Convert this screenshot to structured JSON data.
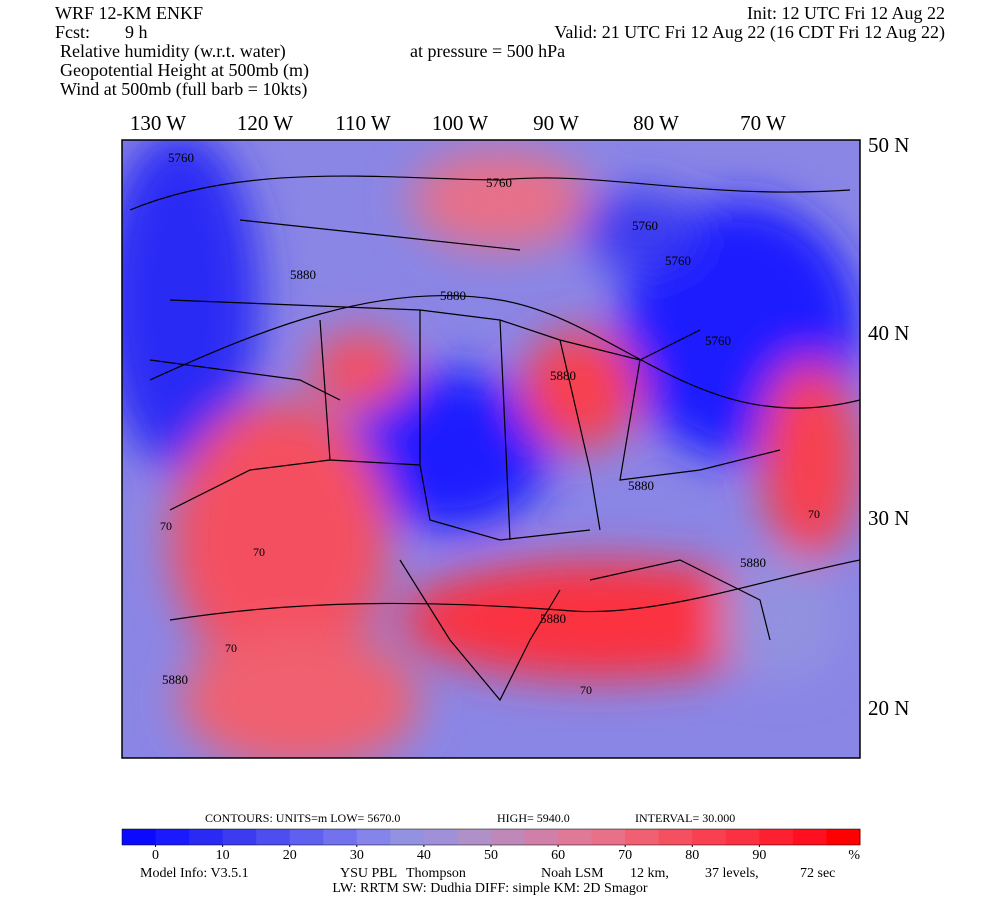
{
  "header": {
    "model": "WRF 12-KM ENKF",
    "init": "Init: 12 UTC Fri 12 Aug 22",
    "fcst_label": "Fcst:",
    "fcst_value": "9 h",
    "valid": "Valid: 21 UTC Fri 12 Aug 22 (16 CDT Fri 12 Aug 22)",
    "pressure": "at pressure =  500 hPa",
    "fields": [
      "Relative humidity (w.r.t. water)",
      "Geopotential Height at 500mb (m)",
      "Wind at 500mb (full barb = 10kts)"
    ]
  },
  "map": {
    "lon_labels": [
      "130 W",
      "120 W",
      "110 W",
      "100 W",
      "90 W",
      "80 W",
      "70 W"
    ],
    "lat_labels": [
      "50 N",
      "40 N",
      "30 N",
      "20 N"
    ],
    "contour_labels": [
      "5760",
      "5760",
      "5760",
      "5760",
      "5880",
      "5880",
      "5880",
      "5760",
      "5880",
      "5880",
      "5880",
      "5880",
      "70",
      "70",
      "70",
      "70",
      "70"
    ]
  },
  "colorbar": {
    "contours": "CONTOURS:  UNITS=m  LOW=  5670.0",
    "high": "HIGH=  5940.0",
    "interval": "INTERVAL=  30.000",
    "lim": [
      -5,
      105
    ],
    "ticks": [
      0,
      10,
      20,
      30,
      40,
      50,
      60,
      70,
      80,
      90
    ],
    "unit": "%",
    "colors": [
      "#0a0aff",
      "#1a1aff",
      "#2a2af5",
      "#3b3bf0",
      "#4d4df0",
      "#6060f0",
      "#7272ee",
      "#8484ea",
      "#9292e0",
      "#a090d8",
      "#b090c8",
      "#c088b8",
      "#d080a8",
      "#e07898",
      "#e87088",
      "#f06070",
      "#f45060",
      "#f84050",
      "#fb3040",
      "#fd2030",
      "#ff1020",
      "#ff0000"
    ]
  },
  "footer": {
    "line1": [
      "Model Info: V3.5.1",
      "YSU PBL",
      "Thompson",
      "Noah LSM",
      "12 km,",
      "37 levels,",
      "72 sec"
    ],
    "line2": "LW: RRTM SW: Dudhia  DIFF: simple KM: 2D Smagor"
  }
}
